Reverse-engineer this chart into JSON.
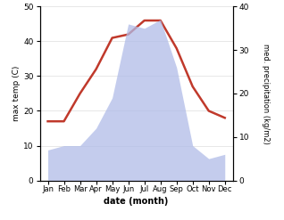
{
  "months": [
    "Jan",
    "Feb",
    "Mar",
    "Apr",
    "May",
    "Jun",
    "Jul",
    "Aug",
    "Sep",
    "Oct",
    "Nov",
    "Dec"
  ],
  "temperature": [
    17,
    17,
    25,
    32,
    41,
    42,
    46,
    46,
    38,
    27,
    20,
    18
  ],
  "precipitation": [
    7,
    8,
    8,
    12,
    19,
    36,
    35,
    37,
    26,
    8,
    5,
    6
  ],
  "temp_color": "#c0392b",
  "precip_color": "#b0bce8",
  "left_ylabel": "max temp (C)",
  "right_ylabel": "med. precipitation (kg/m2)",
  "xlabel": "date (month)",
  "ylim_left": [
    0,
    50
  ],
  "ylim_right": [
    0,
    40
  ],
  "yticks_left": [
    0,
    10,
    20,
    30,
    40,
    50
  ],
  "yticks_right": [
    0,
    10,
    20,
    30,
    40
  ],
  "temp_linewidth": 1.8
}
